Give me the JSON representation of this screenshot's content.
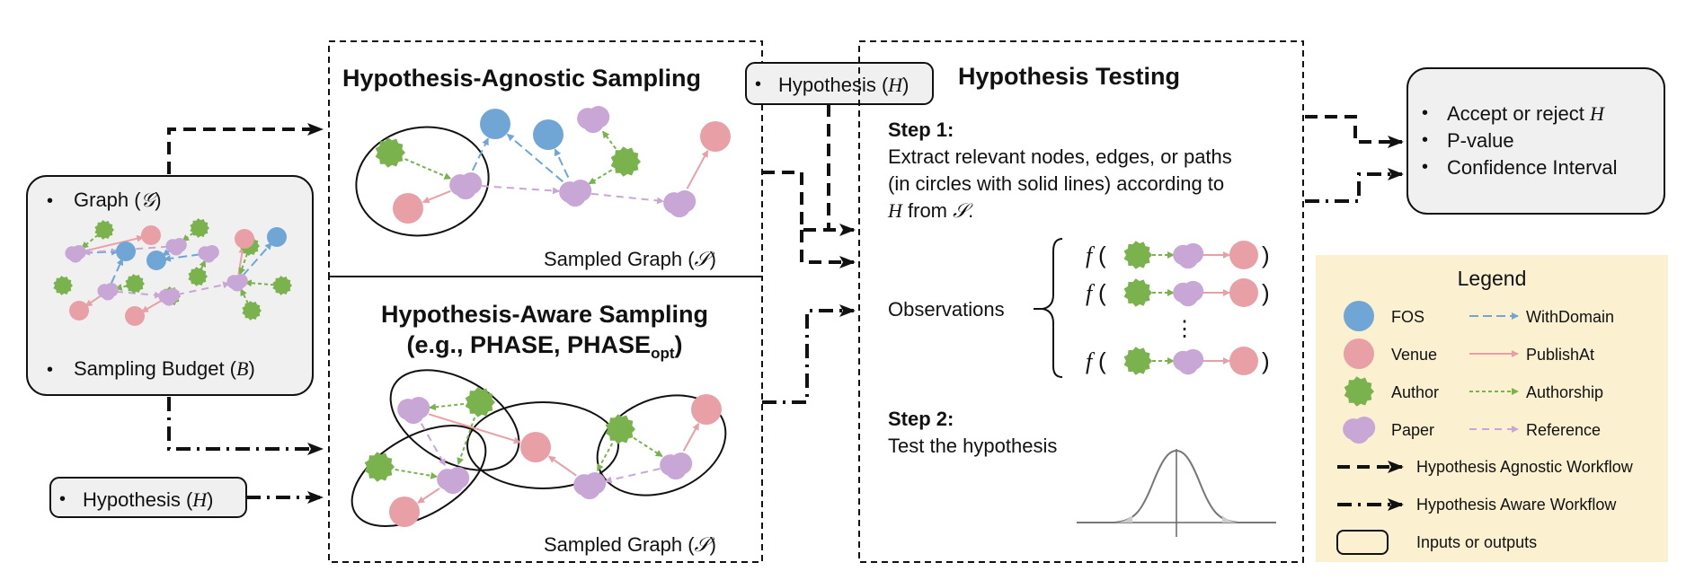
{
  "colors": {
    "fos": "#6fa6d6",
    "venue": "#e8a0a6",
    "author": "#7ab24d",
    "paper": "#c8a6d6",
    "legend_bg": "#fbf0cf",
    "panel_bg": "#f0f0f0"
  },
  "inputs": {
    "graph_label": "Graph (",
    "graph_symbol": "𝒢",
    "budget_label": "Sampling Budget (",
    "budget_symbol": "B",
    "close_paren": ")",
    "bullet": "•"
  },
  "hypothesis_input": {
    "label": "Hypothesis (",
    "symbol": "H",
    "close_paren": ")"
  },
  "agnostic": {
    "title": "Hypothesis-Agnostic Sampling",
    "caption": "Sampled Graph (",
    "caption_symbol": "𝒮",
    "close_paren": ")"
  },
  "aware": {
    "title": "Hypothesis-Aware Sampling",
    "subtitle_prefix": "(e.g., PHASE, PHASE",
    "subtitle_sub": "opt",
    "subtitle_suffix": ")",
    "caption": "Sampled Graph (",
    "caption_symbol": "𝒮",
    "close_paren": ")"
  },
  "hypothesis_tag": {
    "label": "Hypothesis (",
    "symbol": "H",
    "close_paren": ")"
  },
  "testing": {
    "title": "Hypothesis Testing",
    "step1_title": "Step 1:",
    "step1_line1": "Extract relevant nodes, edges, or paths",
    "step1_line2": "(in circles with solid lines) according to",
    "step1_line3_symbol": "H",
    "step1_line3_mid": " from ",
    "step1_line3_symbol2": "𝒮",
    "step1_line3_end": ".",
    "observations_label": "Observations",
    "f_symbol": "f",
    "open_paren": "(",
    "close_paren": ")",
    "dots": "⋮",
    "step2_title": "Step 2:",
    "step2_text": "Test the hypothesis"
  },
  "outputs": {
    "items": [
      {
        "text": "Accept or reject ",
        "symbol": "H"
      },
      {
        "text": "P-value",
        "symbol": ""
      },
      {
        "text": "Confidence Interval",
        "symbol": ""
      }
    ]
  },
  "legend": {
    "title": "Legend",
    "nodes": [
      {
        "name": "FOS",
        "kind": "fos"
      },
      {
        "name": "Venue",
        "kind": "venue"
      },
      {
        "name": "Author",
        "kind": "author"
      },
      {
        "name": "Paper",
        "kind": "paper"
      }
    ],
    "edges": [
      {
        "name": "WithDomain",
        "kind": "fos"
      },
      {
        "name": "PublishAt",
        "kind": "venue"
      },
      {
        "name": "Authorship",
        "kind": "author"
      },
      {
        "name": "Reference",
        "kind": "paper"
      }
    ],
    "workflows": [
      {
        "name": "Hypothesis Agnostic Workflow",
        "style": "dashed"
      },
      {
        "name": "Hypothesis Aware Workflow",
        "style": "dashdot"
      },
      {
        "name": "Inputs or outputs",
        "style": "box"
      }
    ]
  }
}
